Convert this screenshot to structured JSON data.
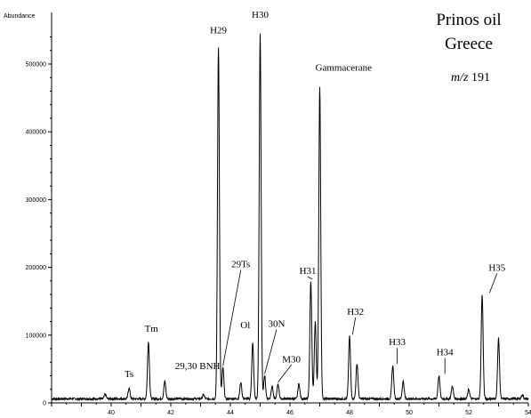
{
  "chart_data": {
    "type": "line",
    "title": "Prinos oil",
    "subtitle": "Greece",
    "ion_prefix": "m/z",
    "ion_value": "191",
    "ylabel": "Abundance",
    "xlabel": "",
    "xlim": [
      38.0,
      54.0
    ],
    "ylim": [
      0,
      560000
    ],
    "xticks": [
      40,
      42,
      44,
      46,
      48,
      50,
      52,
      54
    ],
    "yticks": [
      0,
      100000,
      200000,
      300000,
      400000,
      500000
    ],
    "baseline": 6000,
    "peaks": [
      {
        "x": 39.8,
        "y": 13000
      },
      {
        "x": 40.6,
        "y": 22000
      },
      {
        "x": 41.25,
        "y": 90000
      },
      {
        "x": 41.8,
        "y": 32000
      },
      {
        "x": 43.1,
        "y": 12000
      },
      {
        "x": 43.6,
        "y": 525000
      },
      {
        "x": 43.75,
        "y": 52000
      },
      {
        "x": 44.35,
        "y": 30000
      },
      {
        "x": 44.75,
        "y": 88000
      },
      {
        "x": 45.0,
        "y": 545000
      },
      {
        "x": 45.15,
        "y": 40000
      },
      {
        "x": 45.4,
        "y": 25000
      },
      {
        "x": 45.6,
        "y": 28000
      },
      {
        "x": 46.3,
        "y": 28000
      },
      {
        "x": 46.7,
        "y": 180000
      },
      {
        "x": 46.85,
        "y": 120000
      },
      {
        "x": 47.0,
        "y": 465000
      },
      {
        "x": 48.0,
        "y": 98000
      },
      {
        "x": 48.25,
        "y": 58000
      },
      {
        "x": 49.45,
        "y": 55000
      },
      {
        "x": 49.8,
        "y": 32000
      },
      {
        "x": 51.0,
        "y": 40000
      },
      {
        "x": 51.45,
        "y": 25000
      },
      {
        "x": 52.0,
        "y": 20000
      },
      {
        "x": 52.45,
        "y": 160000
      },
      {
        "x": 53.0,
        "y": 95000
      },
      {
        "x": 53.8,
        "y": 12000
      }
    ],
    "annotations": [
      {
        "label": "Ts",
        "x": 40.6,
        "y": 22000,
        "label_x": 40.6,
        "label_y": 38000,
        "leader": false
      },
      {
        "label": "Tm",
        "x": 41.25,
        "y": 90000,
        "label_x": 41.35,
        "label_y": 105000,
        "leader": false
      },
      {
        "label": "29,30 BNH",
        "x": 41.8,
        "y": 32000,
        "label_x": 42.9,
        "label_y": 50000,
        "leader": false
      },
      {
        "label": "H29",
        "x": 43.6,
        "y": 525000,
        "label_x": 43.6,
        "label_y": 545000,
        "leader": false
      },
      {
        "label": "29Ts",
        "x": 43.75,
        "y": 52000,
        "label_x": 44.35,
        "label_y": 200000,
        "leader": true
      },
      {
        "label": "Ol",
        "x": 44.75,
        "y": 88000,
        "label_x": 44.5,
        "label_y": 110000,
        "leader": false
      },
      {
        "label": "H30",
        "x": 45.0,
        "y": 545000,
        "label_x": 45.0,
        "label_y": 568000,
        "leader": false
      },
      {
        "label": "30N",
        "x": 45.15,
        "y": 40000,
        "label_x": 45.55,
        "label_y": 112000,
        "leader": true
      },
      {
        "label": "M30",
        "x": 45.6,
        "y": 28000,
        "label_x": 46.05,
        "label_y": 60000,
        "leader": true
      },
      {
        "label": "Gammacerane",
        "x": 47.0,
        "y": 465000,
        "label_x": 47.8,
        "label_y": 490000,
        "leader": false
      },
      {
        "label": "H31",
        "x": 46.75,
        "y": 180000,
        "label_x": 46.6,
        "label_y": 190000,
        "leader": true
      },
      {
        "label": "H32",
        "x": 48.1,
        "y": 98000,
        "label_x": 48.2,
        "label_y": 130000,
        "leader": true
      },
      {
        "label": "H33",
        "x": 49.6,
        "y": 55000,
        "label_x": 49.6,
        "label_y": 85000,
        "leader": true
      },
      {
        "label": "H34",
        "x": 51.2,
        "y": 40000,
        "label_x": 51.2,
        "label_y": 70000,
        "leader": true
      },
      {
        "label": "H35",
        "x": 52.7,
        "y": 160000,
        "label_x": 52.95,
        "label_y": 195000,
        "leader": true
      }
    ],
    "grid": false,
    "legend": "none",
    "colors": {
      "trace": "#000000",
      "background": "#ffffff"
    }
  }
}
